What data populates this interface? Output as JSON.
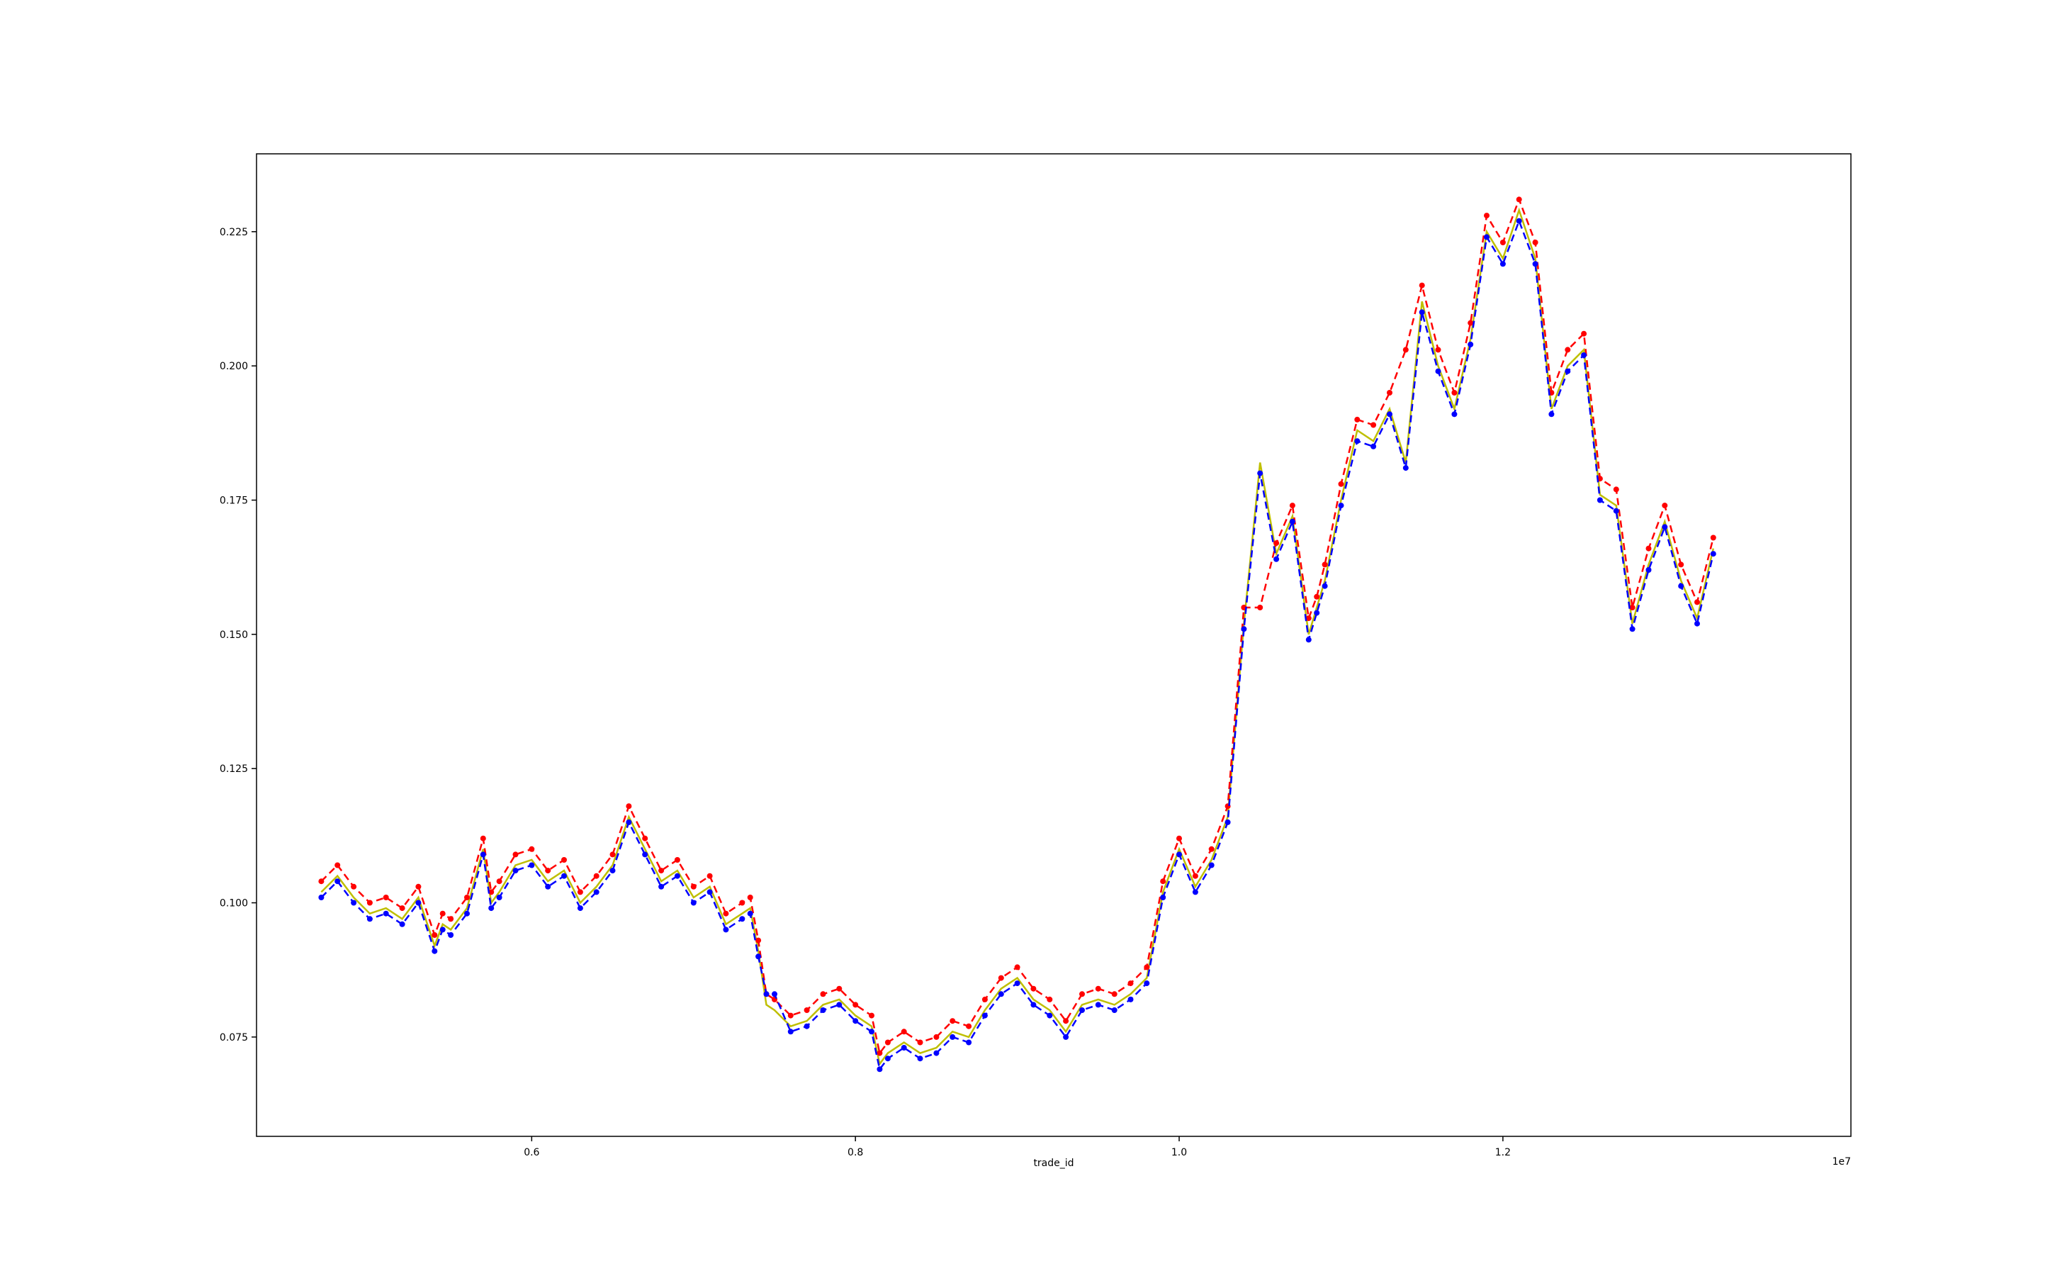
{
  "chart_data": {
    "type": "line",
    "title": "",
    "xlabel": "trade_id",
    "ylabel": "",
    "x_offset_label": "1e7",
    "xlim": [
      0.43,
      1.415
    ],
    "ylim": [
      0.0565,
      0.2395
    ],
    "x_ticks": [
      0.6,
      0.8,
      1.0,
      1.2
    ],
    "x_tick_labels": [
      "0.6",
      "0.8",
      "1.0",
      "1.2"
    ],
    "y_ticks": [
      0.075,
      0.1,
      0.125,
      0.15,
      0.175,
      0.2,
      0.225
    ],
    "y_tick_labels": [
      "0.075",
      "0.100",
      "0.125",
      "0.150",
      "0.175",
      "0.200",
      "0.225"
    ],
    "grid": false,
    "legend": "none",
    "x_unit_note": "x values in units of 1e7",
    "series": [
      {
        "color": "#bfbf00",
        "style": "solid",
        "role": "price line",
        "x": [
          0.47,
          0.48,
          0.49,
          0.5,
          0.51,
          0.52,
          0.53,
          0.54,
          0.545,
          0.55,
          0.56,
          0.57,
          0.575,
          0.58,
          0.59,
          0.6,
          0.61,
          0.62,
          0.63,
          0.64,
          0.65,
          0.66,
          0.67,
          0.68,
          0.69,
          0.7,
          0.71,
          0.72,
          0.73,
          0.735,
          0.74,
          0.745,
          0.75,
          0.76,
          0.77,
          0.78,
          0.79,
          0.8,
          0.81,
          0.815,
          0.82,
          0.83,
          0.84,
          0.85,
          0.86,
          0.87,
          0.88,
          0.89,
          0.9,
          0.91,
          0.92,
          0.93,
          0.94,
          0.95,
          0.96,
          0.97,
          0.98,
          0.99,
          1.0,
          1.01,
          1.02,
          1.03,
          1.04,
          1.05,
          1.06,
          1.07,
          1.08,
          1.085,
          1.09,
          1.1,
          1.11,
          1.12,
          1.13,
          1.14,
          1.15,
          1.16,
          1.17,
          1.18,
          1.19,
          1.2,
          1.21,
          1.22,
          1.23,
          1.24,
          1.25,
          1.26,
          1.27,
          1.28,
          1.29,
          1.3,
          1.31,
          1.32,
          1.33
        ],
        "y": [
          0.102,
          0.105,
          0.101,
          0.098,
          0.099,
          0.097,
          0.101,
          0.092,
          0.096,
          0.095,
          0.099,
          0.11,
          0.1,
          0.102,
          0.107,
          0.108,
          0.104,
          0.106,
          0.1,
          0.103,
          0.107,
          0.116,
          0.11,
          0.104,
          0.106,
          0.101,
          0.103,
          0.096,
          0.098,
          0.099,
          0.091,
          0.081,
          0.08,
          0.077,
          0.078,
          0.081,
          0.082,
          0.079,
          0.077,
          0.07,
          0.072,
          0.074,
          0.072,
          0.073,
          0.076,
          0.075,
          0.08,
          0.084,
          0.086,
          0.082,
          0.08,
          0.076,
          0.081,
          0.082,
          0.081,
          0.083,
          0.086,
          0.102,
          0.11,
          0.103,
          0.108,
          0.116,
          0.152,
          0.182,
          0.165,
          0.172,
          0.15,
          0.155,
          0.16,
          0.175,
          0.188,
          0.186,
          0.192,
          0.182,
          0.212,
          0.2,
          0.192,
          0.205,
          0.225,
          0.22,
          0.229,
          0.22,
          0.192,
          0.2,
          0.203,
          0.176,
          0.174,
          0.152,
          0.163,
          0.171,
          0.16,
          0.153,
          0.166
        ]
      },
      {
        "color": "#ff0000",
        "style": "dashed with dot markers",
        "role": "upper band",
        "x": [
          0.47,
          0.48,
          0.49,
          0.5,
          0.51,
          0.52,
          0.53,
          0.54,
          0.545,
          0.55,
          0.56,
          0.57,
          0.575,
          0.58,
          0.59,
          0.6,
          0.61,
          0.62,
          0.63,
          0.64,
          0.65,
          0.66,
          0.67,
          0.68,
          0.69,
          0.7,
          0.71,
          0.72,
          0.73,
          0.735,
          0.74,
          0.745,
          0.75,
          0.76,
          0.77,
          0.78,
          0.79,
          0.8,
          0.81,
          0.815,
          0.82,
          0.83,
          0.84,
          0.85,
          0.86,
          0.87,
          0.88,
          0.89,
          0.9,
          0.91,
          0.92,
          0.93,
          0.94,
          0.95,
          0.96,
          0.97,
          0.98,
          0.99,
          1.0,
          1.01,
          1.02,
          1.03,
          1.04,
          1.05,
          1.06,
          1.07,
          1.08,
          1.085,
          1.09,
          1.1,
          1.11,
          1.12,
          1.13,
          1.14,
          1.15,
          1.16,
          1.17,
          1.18,
          1.19,
          1.2,
          1.21,
          1.22,
          1.23,
          1.24,
          1.25,
          1.26,
          1.27,
          1.28,
          1.29,
          1.3,
          1.31,
          1.32,
          1.33
        ],
        "y": [
          0.104,
          0.107,
          0.103,
          0.1,
          0.101,
          0.099,
          0.103,
          0.094,
          0.098,
          0.097,
          0.101,
          0.112,
          0.102,
          0.104,
          0.109,
          0.11,
          0.106,
          0.108,
          0.102,
          0.105,
          0.109,
          0.118,
          0.112,
          0.106,
          0.108,
          0.103,
          0.105,
          0.098,
          0.1,
          0.101,
          0.093,
          0.083,
          0.082,
          0.079,
          0.08,
          0.083,
          0.084,
          0.081,
          0.079,
          0.072,
          0.074,
          0.076,
          0.074,
          0.075,
          0.078,
          0.077,
          0.082,
          0.086,
          0.088,
          0.084,
          0.082,
          0.078,
          0.083,
          0.084,
          0.083,
          0.085,
          0.088,
          0.104,
          0.112,
          0.105,
          0.11,
          0.118,
          0.155,
          0.155,
          0.167,
          0.174,
          0.153,
          0.157,
          0.163,
          0.178,
          0.19,
          0.189,
          0.195,
          0.203,
          0.215,
          0.203,
          0.195,
          0.208,
          0.228,
          0.223,
          0.231,
          0.223,
          0.195,
          0.203,
          0.206,
          0.179,
          0.177,
          0.155,
          0.166,
          0.174,
          0.163,
          0.156,
          0.168
        ]
      },
      {
        "color": "#0000ff",
        "style": "dashed with dot markers",
        "role": "lower band",
        "x": [
          0.47,
          0.48,
          0.49,
          0.5,
          0.51,
          0.52,
          0.53,
          0.54,
          0.545,
          0.55,
          0.56,
          0.57,
          0.575,
          0.58,
          0.59,
          0.6,
          0.61,
          0.62,
          0.63,
          0.64,
          0.65,
          0.66,
          0.67,
          0.68,
          0.69,
          0.7,
          0.71,
          0.72,
          0.73,
          0.735,
          0.74,
          0.745,
          0.75,
          0.76,
          0.77,
          0.78,
          0.79,
          0.8,
          0.81,
          0.815,
          0.82,
          0.83,
          0.84,
          0.85,
          0.86,
          0.87,
          0.88,
          0.89,
          0.9,
          0.91,
          0.92,
          0.93,
          0.94,
          0.95,
          0.96,
          0.97,
          0.98,
          0.99,
          1.0,
          1.01,
          1.02,
          1.03,
          1.04,
          1.05,
          1.06,
          1.07,
          1.08,
          1.085,
          1.09,
          1.1,
          1.11,
          1.12,
          1.13,
          1.14,
          1.15,
          1.16,
          1.17,
          1.18,
          1.19,
          1.2,
          1.21,
          1.22,
          1.23,
          1.24,
          1.25,
          1.26,
          1.27,
          1.28,
          1.29,
          1.3,
          1.31,
          1.32,
          1.33
        ],
        "y": [
          0.101,
          0.104,
          0.1,
          0.097,
          0.098,
          0.096,
          0.1,
          0.091,
          0.095,
          0.094,
          0.098,
          0.109,
          0.099,
          0.101,
          0.106,
          0.107,
          0.103,
          0.105,
          0.099,
          0.102,
          0.106,
          0.115,
          0.109,
          0.103,
          0.105,
          0.1,
          0.102,
          0.095,
          0.097,
          0.098,
          0.09,
          0.083,
          0.083,
          0.076,
          0.077,
          0.08,
          0.081,
          0.078,
          0.076,
          0.069,
          0.071,
          0.073,
          0.071,
          0.072,
          0.075,
          0.074,
          0.079,
          0.083,
          0.085,
          0.081,
          0.079,
          0.075,
          0.08,
          0.081,
          0.08,
          0.082,
          0.085,
          0.101,
          0.109,
          0.102,
          0.107,
          0.115,
          0.151,
          0.18,
          0.164,
          0.171,
          0.149,
          0.154,
          0.159,
          0.174,
          0.186,
          0.185,
          0.191,
          0.181,
          0.21,
          0.199,
          0.191,
          0.204,
          0.224,
          0.219,
          0.227,
          0.219,
          0.191,
          0.199,
          0.202,
          0.175,
          0.173,
          0.151,
          0.162,
          0.17,
          0.159,
          0.152,
          0.165
        ]
      }
    ]
  }
}
